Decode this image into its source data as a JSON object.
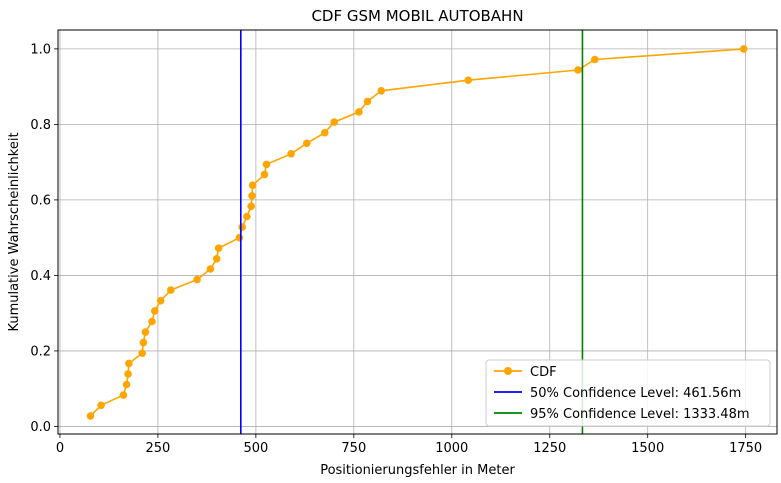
{
  "chart_data": {
    "type": "line",
    "title": "CDF GSM MOBIL AUTOBAHN",
    "xlabel": "Positionierungsfehler in Meter",
    "ylabel": "Kumulative Wahrscheinlichkeit",
    "xlim": [
      -5,
      1830
    ],
    "ylim": [
      -0.02,
      1.05
    ],
    "xticks": [
      0,
      250,
      500,
      750,
      1000,
      1250,
      1500,
      1750
    ],
    "xtick_labels": [
      "0",
      "250",
      "500",
      "750",
      "1000",
      "1250",
      "1500",
      "1750"
    ],
    "yticks": [
      0.0,
      0.2,
      0.4,
      0.6,
      0.8,
      1.0
    ],
    "ytick_labels": [
      "0.0",
      "0.2",
      "0.4",
      "0.6",
      "0.8",
      "1.0"
    ],
    "grid": true,
    "legend_position": "lower-right",
    "series": [
      {
        "name": "CDF",
        "color": "#FFA500",
        "x": [
          78,
          105,
          162,
          170,
          174,
          176,
          210,
          213,
          218,
          235,
          242,
          257,
          283,
          350,
          384,
          400,
          405,
          458,
          465,
          477,
          488,
          490,
          492,
          522,
          527,
          590,
          630,
          676,
          700,
          763,
          785,
          820,
          1042,
          1322,
          1365,
          1745
        ],
        "y": [
          0.028,
          0.056,
          0.083,
          0.111,
          0.139,
          0.167,
          0.194,
          0.222,
          0.25,
          0.278,
          0.306,
          0.333,
          0.361,
          0.389,
          0.417,
          0.444,
          0.472,
          0.5,
          0.528,
          0.556,
          0.583,
          0.611,
          0.639,
          0.667,
          0.694,
          0.722,
          0.75,
          0.778,
          0.806,
          0.833,
          0.861,
          0.889,
          0.917,
          0.944,
          0.972,
          1.0
        ]
      }
    ],
    "vlines": [
      {
        "name": "50% Confidence Level: 461.56m",
        "x": 461.56,
        "color": "#0000FF"
      },
      {
        "name": "95% Confidence Level: 1333.48m",
        "x": 1333.48,
        "color": "#008000"
      }
    ]
  }
}
